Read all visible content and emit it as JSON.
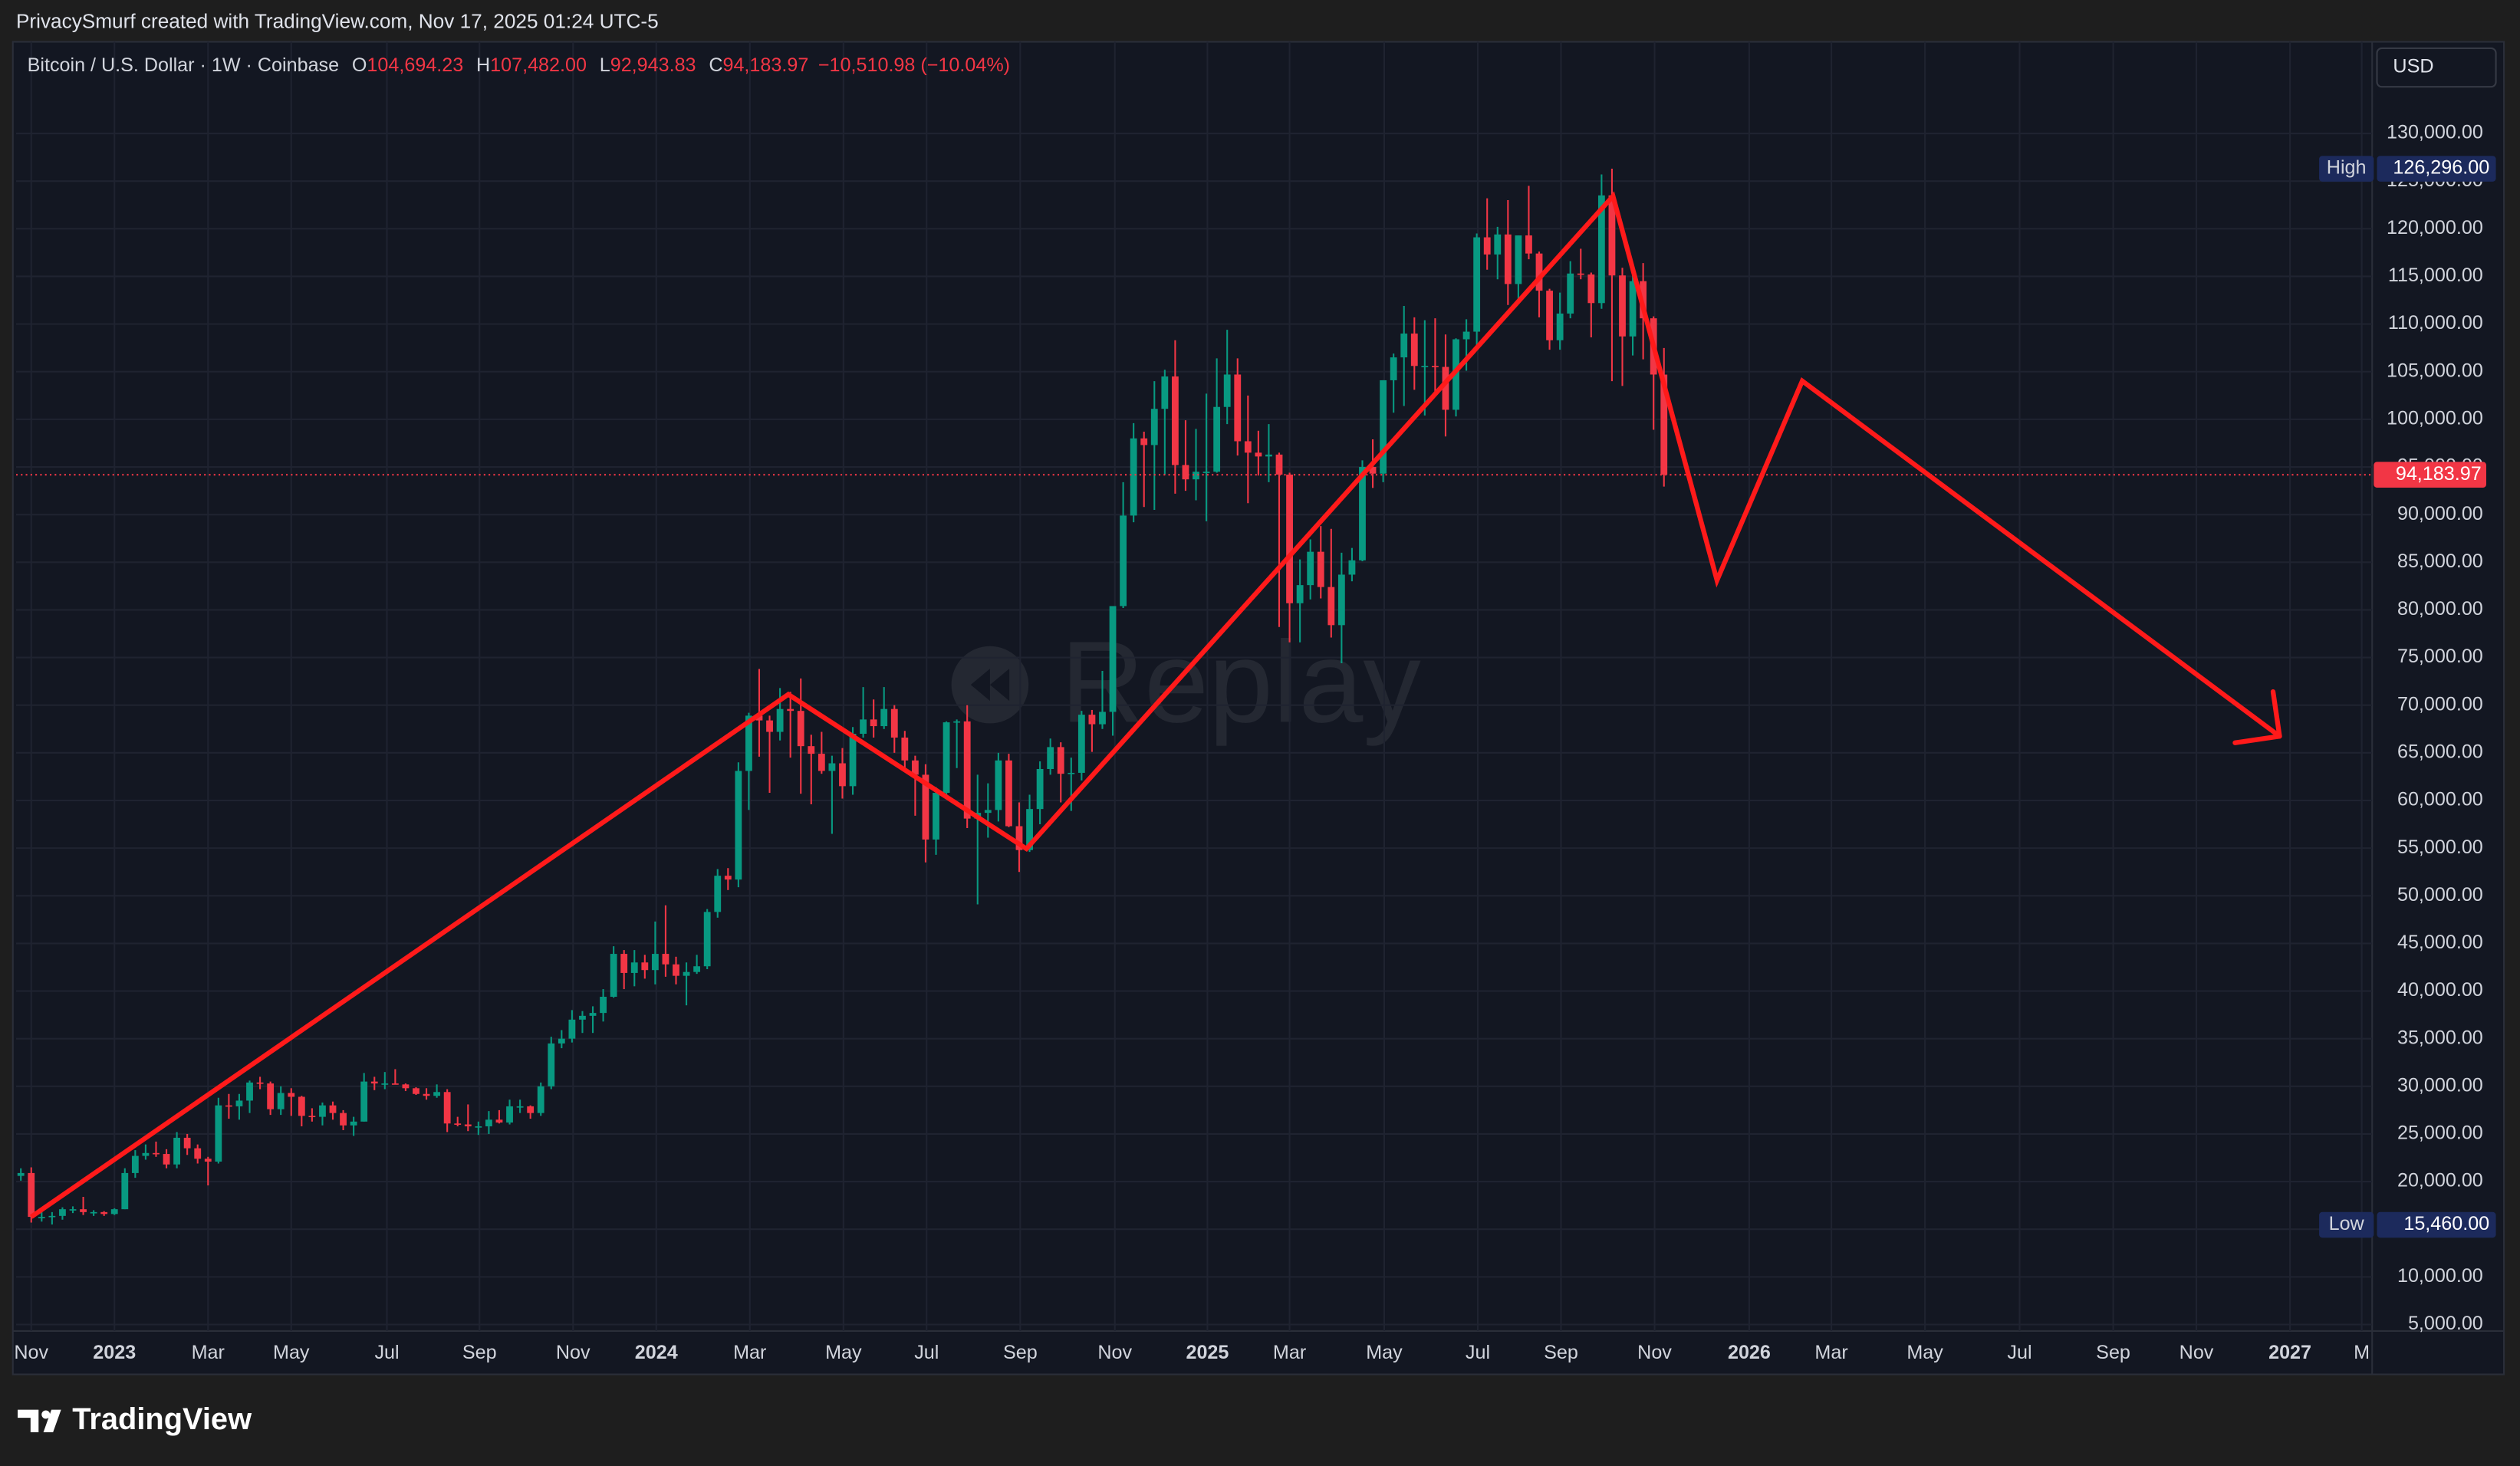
{
  "header": {
    "title": "PrivacySmurf created with TradingView.com, Nov 17, 2025 01:24 UTC-5"
  },
  "chart_data": {
    "type": "candlestick",
    "symbol": "Bitcoin / U.S. Dollar · 1W · Coinbase",
    "ohlc": [
      {
        "key": "O",
        "value": "104,694.23"
      },
      {
        "key": "H",
        "value": "107,482.00"
      },
      {
        "key": "L",
        "value": "92,943.83"
      },
      {
        "key": "C",
        "value": "94,183.97"
      }
    ],
    "change": "−10,510.98 (−10.04%)",
    "currency": "USD",
    "watermark": "Replay",
    "up_color": "#089981",
    "down_color": "#f23645",
    "candles": [
      [
        20600,
        21400,
        20100,
        20900
      ],
      [
        20900,
        21500,
        15700,
        16300
      ],
      [
        16300,
        17200,
        15800,
        16300
      ],
      [
        16300,
        16800,
        15500,
        16400
      ],
      [
        16400,
        17300,
        16000,
        17100
      ],
      [
        17100,
        17400,
        16700,
        17100
      ],
      [
        17100,
        18400,
        16500,
        16800
      ],
      [
        16800,
        17000,
        16400,
        16800
      ],
      [
        16800,
        16900,
        16400,
        16600
      ],
      [
        16600,
        17200,
        16500,
        17100
      ],
      [
        17100,
        21400,
        17100,
        20900
      ],
      [
        20900,
        23300,
        20400,
        22700
      ],
      [
        22700,
        23900,
        22300,
        23000
      ],
      [
        23000,
        24200,
        22600,
        22900
      ],
      [
        22900,
        23400,
        21400,
        21800
      ],
      [
        21800,
        25200,
        21400,
        24600
      ],
      [
        24600,
        25000,
        22800,
        23500
      ],
      [
        23500,
        23900,
        21900,
        22400
      ],
      [
        22400,
        22600,
        19600,
        22100
      ],
      [
        22100,
        28800,
        21900,
        28000
      ],
      [
        28000,
        29200,
        26600,
        27900
      ],
      [
        27900,
        29200,
        26500,
        28500
      ],
      [
        28500,
        30600,
        27200,
        30400
      ],
      [
        30400,
        31000,
        29700,
        30300
      ],
      [
        30300,
        30500,
        27000,
        27600
      ],
      [
        27600,
        30000,
        27000,
        29300
      ],
      [
        29300,
        29800,
        26900,
        28900
      ],
      [
        28900,
        29000,
        25800,
        26900
      ],
      [
        26900,
        27700,
        26300,
        26800
      ],
      [
        26800,
        28300,
        25900,
        28000
      ],
      [
        28000,
        28400,
        26500,
        27200
      ],
      [
        27200,
        27500,
        25400,
        25900
      ],
      [
        25900,
        26800,
        24800,
        26300
      ],
      [
        26300,
        31400,
        26300,
        30500
      ],
      [
        30500,
        31000,
        29600,
        30300
      ],
      [
        30300,
        31500,
        29700,
        30300
      ],
      [
        30300,
        31800,
        30200,
        30200
      ],
      [
        30200,
        30300,
        29500,
        29800
      ],
      [
        29800,
        29900,
        29100,
        29200
      ],
      [
        29200,
        29800,
        28600,
        29000
      ],
      [
        29000,
        30200,
        28800,
        29400
      ],
      [
        29400,
        29700,
        25200,
        26100
      ],
      [
        26100,
        26800,
        25800,
        26000
      ],
      [
        26000,
        28100,
        25300,
        25800
      ],
      [
        25800,
        26300,
        24900,
        25800
      ],
      [
        25800,
        27400,
        25000,
        26500
      ],
      [
        26500,
        27500,
        26100,
        26200
      ],
      [
        26200,
        28600,
        26000,
        27900
      ],
      [
        27900,
        28600,
        27200,
        27900
      ],
      [
        27900,
        28000,
        26600,
        27200
      ],
      [
        27200,
        30400,
        26900,
        30000
      ],
      [
        30000,
        35200,
        29700,
        34500
      ],
      [
        34500,
        35900,
        34000,
        35000
      ],
      [
        35000,
        38000,
        34600,
        37000
      ],
      [
        37000,
        37900,
        35600,
        37400
      ],
      [
        37400,
        38400,
        35600,
        37700
      ],
      [
        37700,
        40200,
        36800,
        39400
      ],
      [
        39400,
        44700,
        39300,
        43900
      ],
      [
        43900,
        44300,
        40200,
        41900
      ],
      [
        41900,
        44300,
        40500,
        43000
      ],
      [
        43000,
        43800,
        41300,
        42200
      ],
      [
        42200,
        47300,
        40700,
        43900
      ],
      [
        43900,
        49000,
        41500,
        42800
      ],
      [
        42800,
        43600,
        40700,
        41600
      ],
      [
        41600,
        43000,
        38500,
        42000
      ],
      [
        42000,
        43800,
        41800,
        42600
      ],
      [
        42600,
        48600,
        42300,
        48300
      ],
      [
        48300,
        52800,
        47700,
        52100
      ],
      [
        52100,
        52900,
        50600,
        51700
      ],
      [
        51700,
        64000,
        50900,
        63100
      ],
      [
        63100,
        69200,
        59000,
        68900
      ],
      [
        68900,
        73800,
        64600,
        68400
      ],
      [
        68400,
        68900,
        60800,
        67200
      ],
      [
        67200,
        71800,
        66300,
        69600
      ],
      [
        69600,
        71400,
        64500,
        69400
      ],
      [
        69400,
        72800,
        60700,
        65700
      ],
      [
        65700,
        66900,
        59600,
        64900
      ],
      [
        64900,
        67200,
        62800,
        63100
      ],
      [
        63100,
        64700,
        56500,
        63900
      ],
      [
        63900,
        65500,
        60200,
        61500
      ],
      [
        61500,
        67700,
        60600,
        67000
      ],
      [
        67000,
        71900,
        66600,
        68500
      ],
      [
        68500,
        70600,
        66600,
        67800
      ],
      [
        67800,
        71900,
        67500,
        69600
      ],
      [
        69600,
        70000,
        65000,
        66600
      ],
      [
        66600,
        67300,
        63400,
        64200
      ],
      [
        64200,
        64700,
        58400,
        62700
      ],
      [
        62700,
        63800,
        53500,
        55900
      ],
      [
        55900,
        61400,
        54300,
        60800
      ],
      [
        60800,
        68300,
        60600,
        68200
      ],
      [
        68200,
        68500,
        63400,
        68300
      ],
      [
        68300,
        70000,
        57100,
        58100
      ],
      [
        58100,
        62700,
        49100,
        58700
      ],
      [
        58700,
        61800,
        56100,
        59000
      ],
      [
        59000,
        65000,
        57800,
        64200
      ],
      [
        64200,
        64900,
        57200,
        57300
      ],
      [
        57300,
        59800,
        52500,
        54800
      ],
      [
        54800,
        60600,
        54600,
        59100
      ],
      [
        59100,
        64100,
        57500,
        63300
      ],
      [
        63300,
        66500,
        62700,
        65600
      ],
      [
        65600,
        66100,
        59800,
        62800
      ],
      [
        62800,
        64500,
        58900,
        62900
      ],
      [
        62900,
        69400,
        62100,
        69000
      ],
      [
        69000,
        69500,
        65100,
        68000
      ],
      [
        68000,
        73600,
        67500,
        69300
      ],
      [
        69300,
        80400,
        66800,
        80400
      ],
      [
        80400,
        93400,
        80200,
        89900
      ],
      [
        89900,
        99600,
        89200,
        98000
      ],
      [
        98000,
        98700,
        90800,
        97300
      ],
      [
        97300,
        104000,
        90500,
        101100
      ],
      [
        101100,
        105200,
        94200,
        104500
      ],
      [
        104500,
        108300,
        92200,
        95200
      ],
      [
        95200,
        99900,
        92500,
        93700
      ],
      [
        93700,
        99000,
        91500,
        94500
      ],
      [
        94500,
        102700,
        89300,
        94500
      ],
      [
        94500,
        106400,
        94400,
        101300
      ],
      [
        101300,
        109400,
        99500,
        104700
      ],
      [
        104700,
        106400,
        96200,
        97700
      ],
      [
        97700,
        102500,
        91200,
        96500
      ],
      [
        96500,
        98800,
        94100,
        96100
      ],
      [
        96100,
        99500,
        93400,
        96300
      ],
      [
        96300,
        96500,
        78200,
        94200
      ],
      [
        94200,
        94400,
        76600,
        80700
      ],
      [
        80700,
        85300,
        76600,
        82600
      ],
      [
        82600,
        87400,
        81100,
        86100
      ],
      [
        86100,
        88800,
        81200,
        82400
      ],
      [
        82400,
        88500,
        77100,
        78400
      ],
      [
        78400,
        86000,
        74400,
        83700
      ],
      [
        83700,
        86500,
        83000,
        85200
      ],
      [
        85200,
        95700,
        85100,
        95000
      ],
      [
        95000,
        97900,
        92800,
        94300
      ],
      [
        94300,
        104100,
        93400,
        104100
      ],
      [
        104100,
        106900,
        100700,
        106500
      ],
      [
        106500,
        111900,
        101400,
        109000
      ],
      [
        109000,
        110700,
        103100,
        105600
      ],
      [
        105600,
        110400,
        100400,
        105600
      ],
      [
        105600,
        110600,
        102600,
        105500
      ],
      [
        105500,
        108900,
        98200,
        101000
      ],
      [
        101000,
        108500,
        100300,
        108400
      ],
      [
        108400,
        110500,
        105100,
        109200
      ],
      [
        109200,
        119500,
        107500,
        119100
      ],
      [
        119100,
        123200,
        115700,
        117300
      ],
      [
        117300,
        120200,
        114700,
        119400
      ],
      [
        119400,
        123000,
        112000,
        114200
      ],
      [
        114200,
        119300,
        112600,
        119300
      ],
      [
        119300,
        124500,
        116800,
        117400
      ],
      [
        117400,
        117600,
        110700,
        113500
      ],
      [
        113500,
        113700,
        107300,
        108300
      ],
      [
        108300,
        113300,
        107300,
        111100
      ],
      [
        111100,
        116600,
        110600,
        115300
      ],
      [
        115300,
        117900,
        114700,
        115200
      ],
      [
        115200,
        115400,
        108600,
        112200
      ],
      [
        112200,
        125700,
        111600,
        123500
      ],
      [
        123500,
        126300,
        104000,
        115100
      ],
      [
        115100,
        115900,
        103500,
        108700
      ],
      [
        108700,
        115400,
        106700,
        114500
      ],
      [
        114500,
        116400,
        106300,
        110600
      ],
      [
        110600,
        110800,
        98900,
        104700
      ],
      [
        104694.23,
        107482,
        92943.83,
        94183.97
      ]
    ],
    "xlim": [
      -0.46,
      226.1
    ],
    "xticks": [
      {
        "value": 1,
        "label": "Nov"
      },
      {
        "value": 9,
        "label": "2023"
      },
      {
        "value": 18,
        "label": "Mar"
      },
      {
        "value": 26,
        "label": "May"
      },
      {
        "value": 35.2,
        "label": "Jul"
      },
      {
        "value": 44.1,
        "label": "Sep"
      },
      {
        "value": 53.1,
        "label": "Nov"
      },
      {
        "value": 61.1,
        "label": "2024"
      },
      {
        "value": 70.1,
        "label": "Mar"
      },
      {
        "value": 79.1,
        "label": "May"
      },
      {
        "value": 87.1,
        "label": "Jul"
      },
      {
        "value": 96.1,
        "label": "Sep"
      },
      {
        "value": 105.2,
        "label": "Nov"
      },
      {
        "value": 114.1,
        "label": "2025"
      },
      {
        "value": 122,
        "label": "Mar"
      },
      {
        "value": 131.1,
        "label": "May"
      },
      {
        "value": 140.1,
        "label": "Jul"
      },
      {
        "value": 148.1,
        "label": "Sep"
      },
      {
        "value": 157.1,
        "label": "Nov"
      },
      {
        "value": 166.2,
        "label": "2026"
      },
      {
        "value": 174.1,
        "label": "Mar"
      },
      {
        "value": 183.1,
        "label": "May"
      },
      {
        "value": 192.2,
        "label": "Jul"
      },
      {
        "value": 201.2,
        "label": "Sep"
      },
      {
        "value": 209.2,
        "label": "Nov"
      },
      {
        "value": 218.2,
        "label": "2027"
      },
      {
        "value": 225.1,
        "label": "M"
      }
    ],
    "ylim": [
      4325,
      139620
    ],
    "yticks": [
      {
        "value": 5000,
        "label": "5,000.00"
      },
      {
        "value": 10000,
        "label": "10,000.00"
      },
      {
        "value": 15000,
        "label": "15,000.00"
      },
      {
        "value": 20000,
        "label": "20,000.00"
      },
      {
        "value": 25000,
        "label": "25,000.00"
      },
      {
        "value": 30000,
        "label": "30,000.00"
      },
      {
        "value": 35000,
        "label": "35,000.00"
      },
      {
        "value": 40000,
        "label": "40,000.00"
      },
      {
        "value": 45000,
        "label": "45,000.00"
      },
      {
        "value": 50000,
        "label": "50,000.00"
      },
      {
        "value": 55000,
        "label": "55,000.00"
      },
      {
        "value": 60000,
        "label": "60,000.00"
      },
      {
        "value": 65000,
        "label": "65,000.00"
      },
      {
        "value": 70000,
        "label": "70,000.00"
      },
      {
        "value": 75000,
        "label": "75,000.00"
      },
      {
        "value": 80000,
        "label": "80,000.00"
      },
      {
        "value": 85000,
        "label": "85,000.00"
      },
      {
        "value": 90000,
        "label": "90,000.00"
      },
      {
        "value": 95000,
        "label": "95,000.00"
      },
      {
        "value": 100000,
        "label": "100,000.00"
      },
      {
        "value": 105000,
        "label": "105,000.00"
      },
      {
        "value": 110000,
        "label": "110,000.00"
      },
      {
        "value": 115000,
        "label": "115,000.00"
      },
      {
        "value": 120000,
        "label": "120,000.00"
      },
      {
        "value": 125000,
        "label": "125,000.00"
      },
      {
        "value": 130000,
        "label": "130,000.00"
      }
    ],
    "grid": true,
    "last_price": {
      "value": 94183.97,
      "label": "94,183.97"
    },
    "high": {
      "name": "High",
      "value": 126296,
      "label": "126,296.00"
    },
    "low": {
      "name": "Low",
      "value": 15460,
      "label": "15,460.00"
    },
    "drawing": {
      "color": "#ff1a1a",
      "x": [
        1,
        73.8,
        96.7,
        153.1,
        163.1,
        171.3,
        217.2
      ],
      "y": [
        16302,
        71127,
        54933,
        123421,
        83104,
        104022,
        66741
      ]
    }
  },
  "footer": {
    "brand": "TradingView"
  }
}
